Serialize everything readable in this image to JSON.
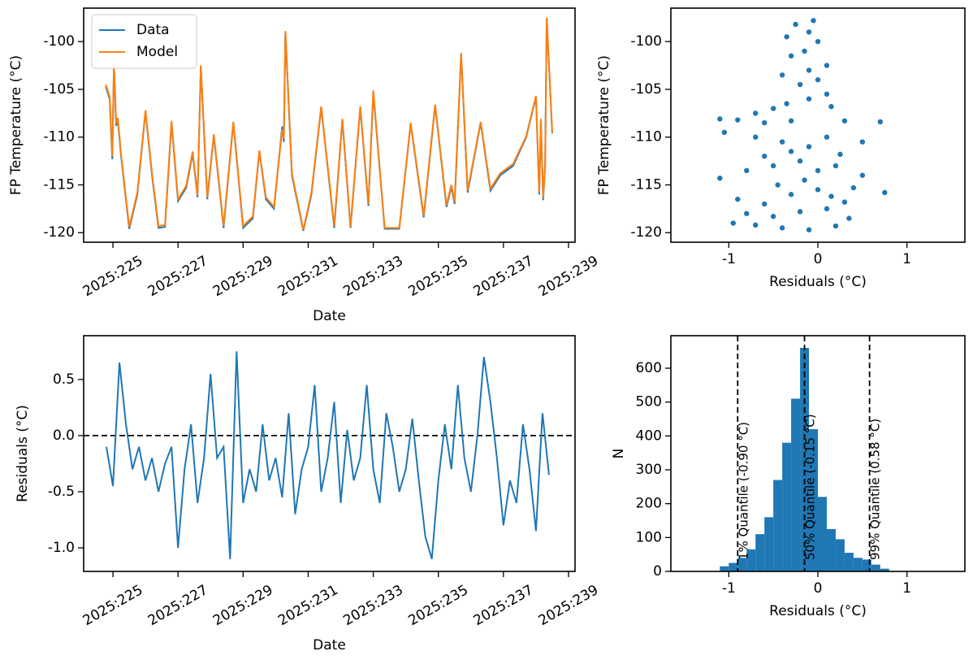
{
  "chart_data": [
    {
      "type": "line",
      "ylabel": "FP Temperature (°C)",
      "xlabel": "Date",
      "legend": "upper left",
      "xtick_rotation": 30,
      "xlim": [
        224.1,
        239.2
      ],
      "ylim": [
        -121.0,
        -96.5
      ],
      "xticks": [
        {
          "value": 225,
          "label": "2025:225"
        },
        {
          "value": 227,
          "label": "2025:227"
        },
        {
          "value": 229,
          "label": "2025:229"
        },
        {
          "value": 231,
          "label": "2025:231"
        },
        {
          "value": 233,
          "label": "2025:233"
        },
        {
          "value": 235,
          "label": "2025:235"
        },
        {
          "value": 237,
          "label": "2025:237"
        },
        {
          "value": 239,
          "label": "2025:239"
        }
      ],
      "yticks": [
        -120,
        -115,
        -110,
        -105,
        -100
      ],
      "x": [
        224.78,
        224.9,
        224.98,
        225.03,
        225.1,
        225.15,
        225.25,
        225.5,
        225.75,
        226.0,
        226.2,
        226.4,
        226.6,
        226.8,
        227.0,
        227.25,
        227.45,
        227.6,
        227.7,
        227.9,
        228.1,
        228.4,
        228.7,
        229.0,
        229.3,
        229.5,
        229.7,
        229.95,
        230.2,
        230.25,
        230.3,
        230.5,
        230.85,
        231.1,
        231.4,
        231.8,
        232.05,
        232.3,
        232.6,
        232.85,
        233.0,
        233.35,
        233.8,
        234.15,
        234.55,
        234.9,
        235.25,
        235.4,
        235.5,
        235.7,
        235.9,
        236.3,
        236.6,
        236.9,
        237.3,
        237.7,
        238.0,
        238.1,
        238.15,
        238.22,
        238.28,
        238.33,
        238.5
      ],
      "series": [
        {
          "name": "Data",
          "color": "#1f77b4",
          "values": [
            -104.7,
            -106,
            -112.3,
            -102.5,
            -108.8,
            -108.2,
            -112,
            -119.6,
            -116,
            -107.3,
            -114,
            -119.5,
            -119.4,
            -108.5,
            -116.7,
            -115.3,
            -111.7,
            -116.3,
            -102.6,
            -116.5,
            -109.8,
            -119.5,
            -108.5,
            -119.5,
            -118.5,
            -111.5,
            -116.5,
            -117.5,
            -108.9,
            -110.5,
            -99,
            -114,
            -119.8,
            -116,
            -106.9,
            -119.5,
            -108.2,
            -119.5,
            -106.9,
            -117.2,
            -105.3,
            -119.6,
            -119.6,
            -108.6,
            -118.4,
            -106.7,
            -117.3,
            -115.2,
            -117,
            -101.3,
            -115.8,
            -108.5,
            -115.6,
            -114,
            -113,
            -110,
            -105.8,
            -116,
            -108.3,
            -116.6,
            -113,
            -97.6,
            -109.6
          ]
        },
        {
          "name": "Model",
          "color": "#ff7f0e",
          "values": [
            -104.5,
            -105.8,
            -112,
            -102.3,
            -108.6,
            -108,
            -111.8,
            -119.4,
            -115.8,
            -107.2,
            -113.8,
            -119.3,
            -119.2,
            -108.3,
            -116.5,
            -115.1,
            -111.5,
            -116.1,
            -102.5,
            -116.3,
            -109.7,
            -119.3,
            -108.4,
            -119.3,
            -118.3,
            -111.4,
            -116.3,
            -117.3,
            -109.2,
            -110.2,
            -98.9,
            -113.8,
            -119.7,
            -115.8,
            -106.8,
            -119.3,
            -108.1,
            -119.4,
            -106.8,
            -117,
            -105.1,
            -119.5,
            -119.5,
            -108.5,
            -118.2,
            -106.6,
            -117.1,
            -115,
            -116.8,
            -101.2,
            -115.6,
            -108.4,
            -115.4,
            -113.8,
            -112.8,
            -109.9,
            -105.7,
            -115.8,
            -108.1,
            -116.4,
            -113.2,
            -97.5,
            -109.5
          ]
        }
      ]
    },
    {
      "type": "scatter",
      "ylabel": "FP Temperature (°C)",
      "xlabel": "Residuals (°C)",
      "color": "#1f77b4",
      "xlim": [
        -1.65,
        1.65
      ],
      "ylim": [
        -121.0,
        -96.5
      ],
      "xticks": [
        -1,
        0,
        1
      ],
      "yticks": [
        -120,
        -115,
        -110,
        -105,
        -100
      ],
      "x": [
        -1.1,
        -0.9,
        -0.6,
        -0.3,
        0.3,
        0.7,
        -1.05,
        -0.7,
        -0.4,
        0.1,
        0.5,
        -1.1,
        -0.8,
        -0.5,
        -0.2,
        0.2,
        0.5,
        -0.9,
        -0.6,
        -0.3,
        0,
        0.4,
        0.75,
        -0.95,
        -0.7,
        -0.4,
        -0.1,
        0.2,
        0.35,
        -0.8,
        -0.5,
        -0.2,
        0.1,
        0.3,
        -0.3,
        -0.1,
        0.25,
        -0.6,
        0,
        -0.15,
        -0.45,
        0.15,
        -0.35,
        -0.1,
        0.1,
        -0.2,
        0,
        -0.4,
        -0.1,
        0.1,
        -0.3,
        -0.15,
        0,
        -0.35,
        -0.1,
        -0.25,
        -0.05,
        0.15,
        -0.5,
        -0.7
      ],
      "values": [
        -108.1,
        -108.2,
        -108.5,
        -108.3,
        -108.3,
        -108.4,
        -109.5,
        -110,
        -110.5,
        -110,
        -110.5,
        -114.3,
        -113.5,
        -113,
        -112.5,
        -113,
        -114,
        -116.5,
        -117,
        -116,
        -115.5,
        -115.3,
        -115.8,
        -119,
        -119.2,
        -119.5,
        -119.7,
        -119.3,
        -118.5,
        -118,
        -118.3,
        -117.8,
        -117.5,
        -116.8,
        -111.5,
        -111,
        -111.8,
        -112,
        -113.5,
        -114.5,
        -115,
        -116.2,
        -106.5,
        -106,
        -105.5,
        -104.5,
        -104,
        -103.5,
        -103,
        -102.5,
        -101.5,
        -101,
        -100,
        -99.5,
        -99,
        -98.2,
        -97.8,
        -106.8,
        -107,
        -107.5
      ]
    },
    {
      "type": "line",
      "ylabel": "Residuals (°C)",
      "xlabel": "Date",
      "xtick_rotation": 30,
      "hline": 0,
      "color": "#1f77b4",
      "xlim": [
        224.1,
        239.2
      ],
      "ylim": [
        -1.21,
        0.89
      ],
      "xticks": [
        {
          "value": 225,
          "label": "2025:225"
        },
        {
          "value": 227,
          "label": "2025:227"
        },
        {
          "value": 229,
          "label": "2025:229"
        },
        {
          "value": 231,
          "label": "2025:231"
        },
        {
          "value": 233,
          "label": "2025:233"
        },
        {
          "value": 235,
          "label": "2025:235"
        },
        {
          "value": 237,
          "label": "2025:237"
        },
        {
          "value": 239,
          "label": "2025:239"
        }
      ],
      "yticks": [
        {
          "value": -1,
          "label": "-1.0"
        },
        -0.5,
        {
          "value": 0,
          "label": "0.0"
        },
        0.5
      ],
      "x": [
        224.8,
        225,
        225.2,
        225.4,
        225.6,
        225.8,
        226,
        226.2,
        226.4,
        226.6,
        226.8,
        227,
        227.2,
        227.4,
        227.6,
        227.8,
        228,
        228.2,
        228.4,
        228.6,
        228.8,
        229,
        229.2,
        229.4,
        229.6,
        229.8,
        230,
        230.2,
        230.4,
        230.6,
        230.8,
        231,
        231.2,
        231.4,
        231.6,
        231.8,
        232,
        232.2,
        232.4,
        232.6,
        232.8,
        233,
        233.2,
        233.4,
        233.6,
        233.8,
        234,
        234.2,
        234.4,
        234.6,
        234.8,
        235,
        235.2,
        235.4,
        235.6,
        235.8,
        236,
        236.2,
        236.4,
        236.6,
        236.8,
        237,
        237.2,
        237.4,
        237.6,
        237.8,
        238,
        238.2,
        238.4
      ],
      "values": [
        -0.1,
        -0.45,
        0.65,
        0.1,
        -0.3,
        -0.1,
        -0.4,
        -0.2,
        -0.5,
        -0.25,
        -0.1,
        -1.0,
        -0.3,
        0.1,
        -0.6,
        -0.2,
        0.55,
        -0.2,
        -0.1,
        -1.1,
        0.75,
        -0.6,
        -0.3,
        -0.5,
        0.1,
        -0.4,
        -0.2,
        -0.55,
        0.2,
        -0.7,
        -0.3,
        -0.1,
        0.45,
        -0.5,
        -0.2,
        0.3,
        -0.6,
        0.05,
        -0.4,
        -0.2,
        0.45,
        -0.3,
        -0.6,
        0.2,
        -0.1,
        -0.5,
        -0.3,
        0.15,
        -0.4,
        -0.9,
        -1.1,
        -0.4,
        0.1,
        -0.3,
        0.45,
        -0.2,
        -0.5,
        0.0,
        0.7,
        0.3,
        -0.2,
        -0.8,
        -0.4,
        -0.6,
        0.1,
        -0.3,
        -0.85,
        0.2,
        -0.35
      ]
    },
    {
      "type": "histogram",
      "ylabel": "N",
      "xlabel": "Residuals (°C)",
      "color": "#1f77b4",
      "xlim": [
        -1.65,
        1.65
      ],
      "ylim": [
        0,
        696
      ],
      "xticks": [
        -1,
        0,
        1
      ],
      "yticks": [
        0,
        100,
        200,
        300,
        400,
        500,
        600
      ],
      "bins": [
        -1.1,
        -1.0,
        -0.9,
        -0.8,
        -0.7,
        -0.6,
        -0.5,
        -0.4,
        -0.3,
        -0.2,
        -0.1,
        0.0,
        0.1,
        0.2,
        0.3,
        0.4,
        0.5,
        0.6,
        0.7,
        0.8
      ],
      "values": [
        15,
        25,
        40,
        65,
        110,
        160,
        270,
        380,
        510,
        660,
        420,
        220,
        125,
        95,
        55,
        40,
        35,
        20,
        8
      ],
      "vlines": [
        {
          "value": -0.9,
          "label": "1% Quantile (-0.90 °C)"
        },
        {
          "value": -0.15,
          "label": "50% Quantile (-0.15 °C)"
        },
        {
          "value": 0.58,
          "label": "99% Quantile (0.58 °C)"
        }
      ]
    }
  ]
}
